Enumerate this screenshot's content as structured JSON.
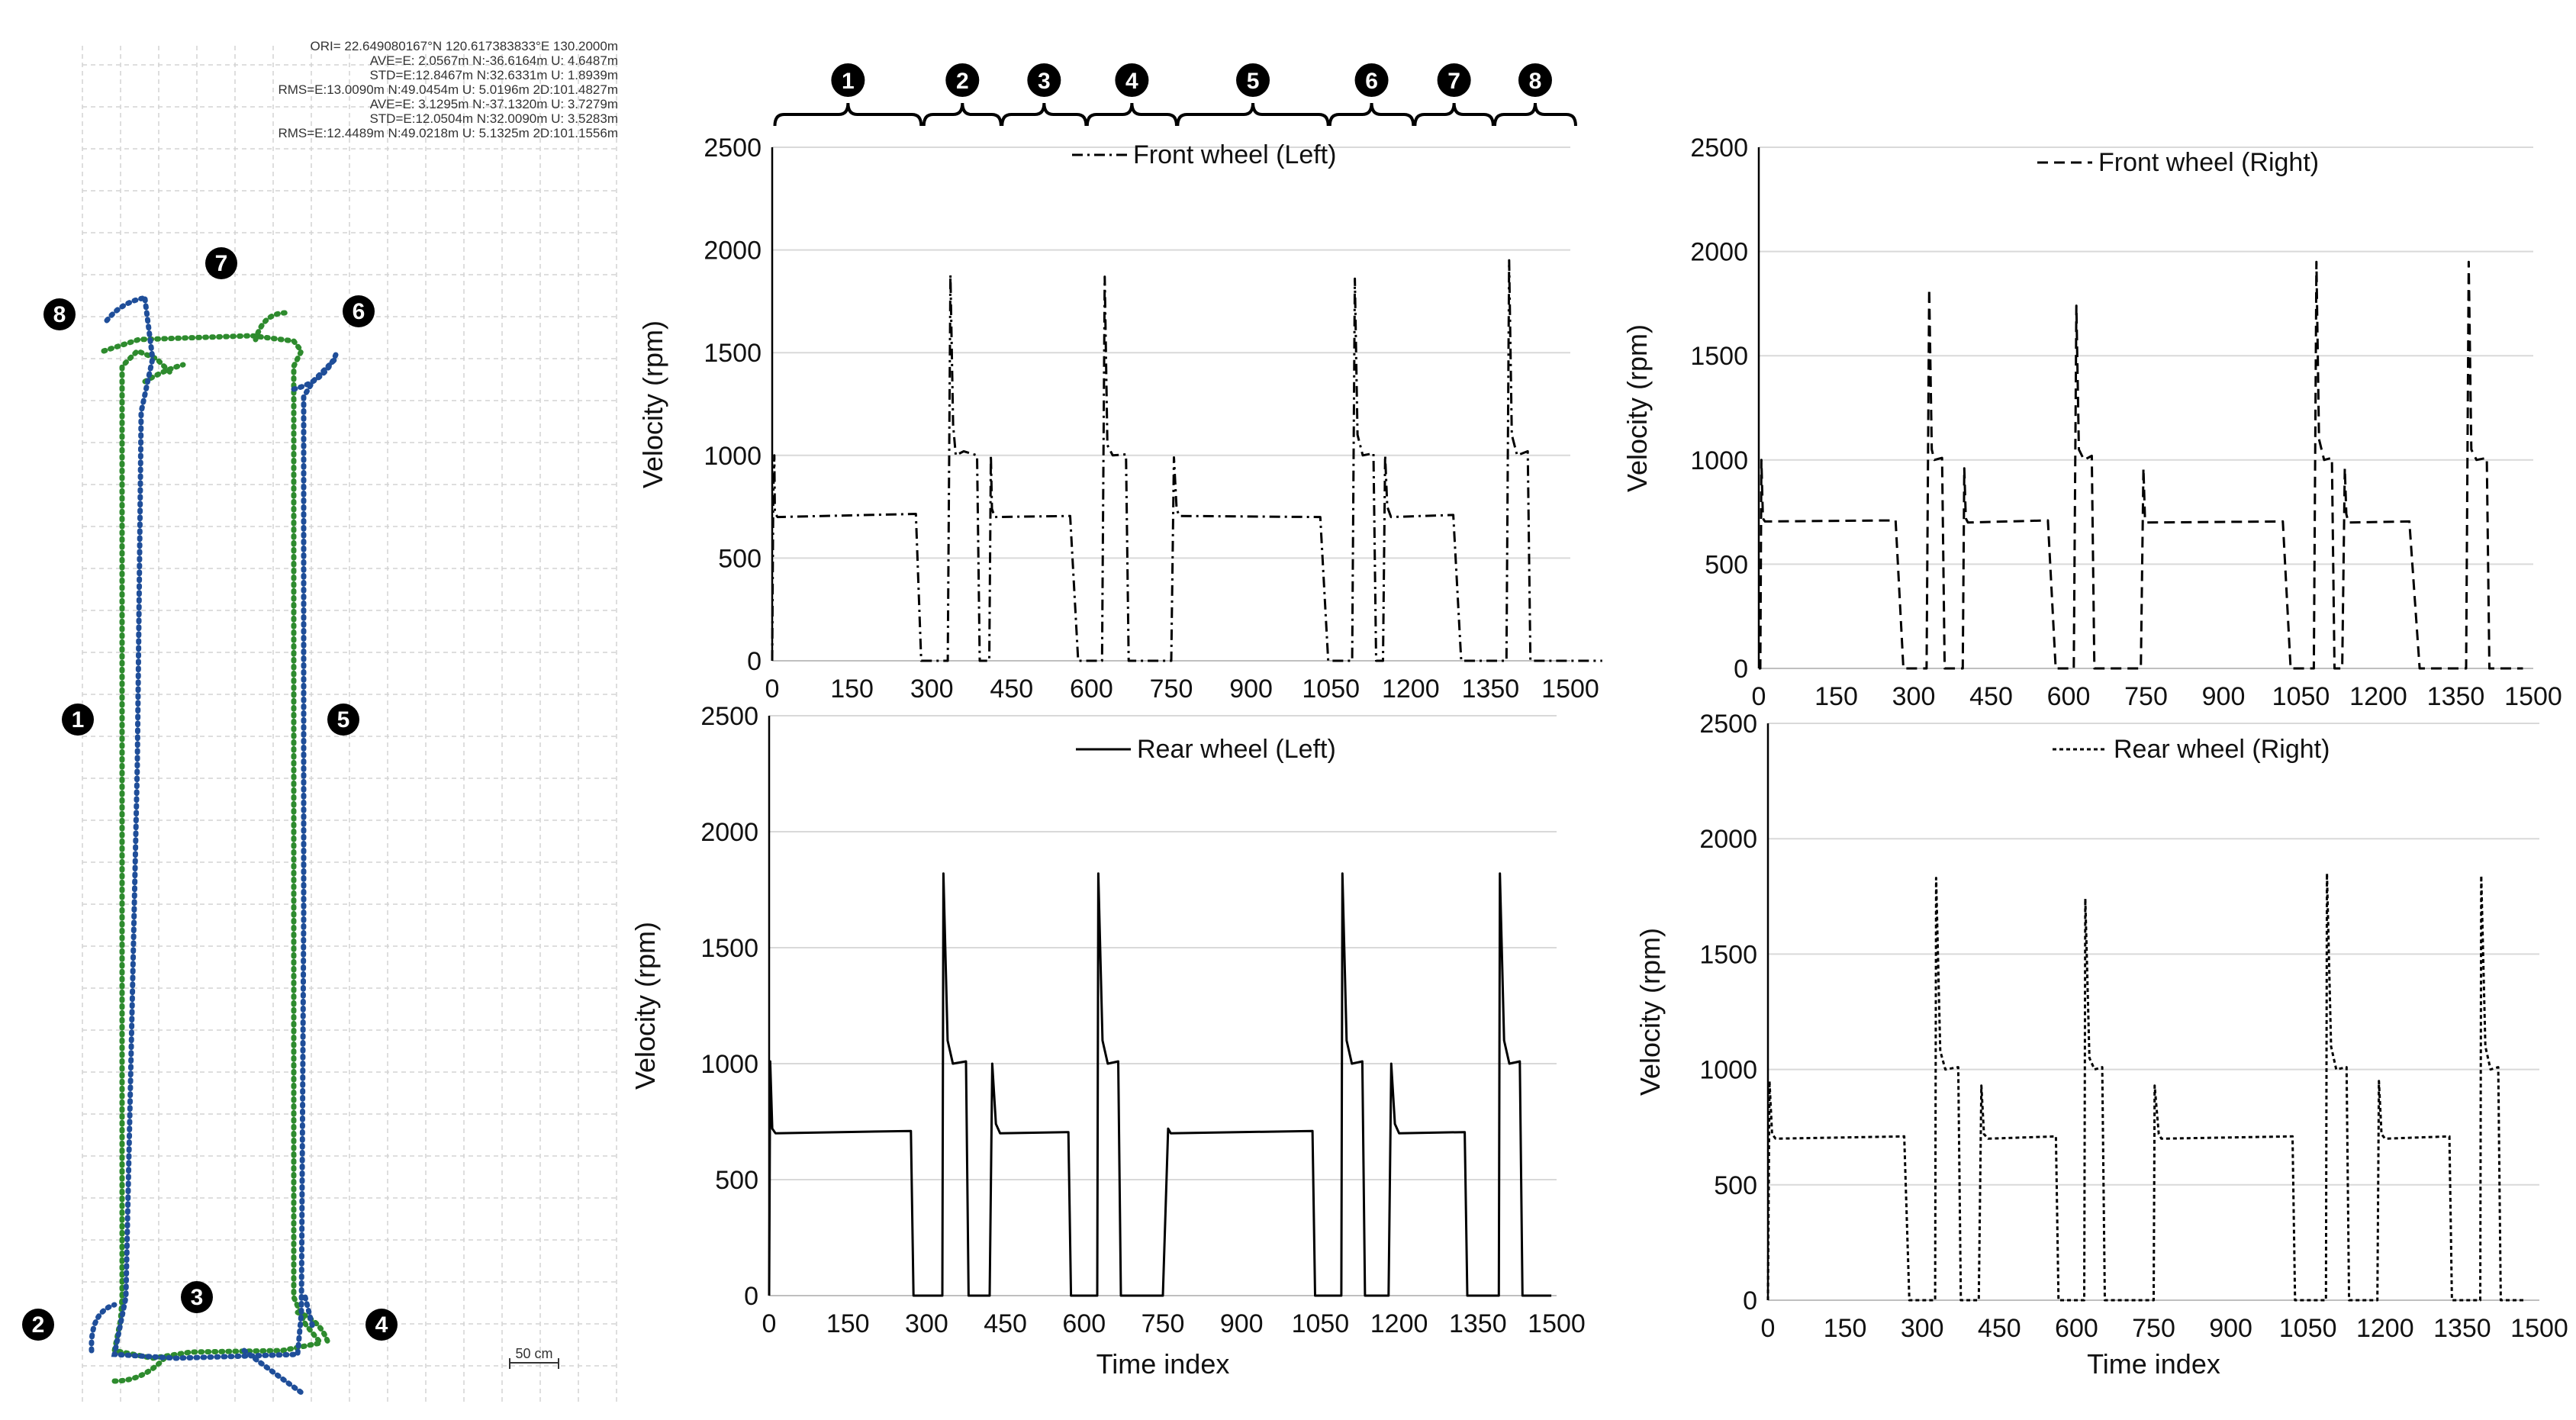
{
  "map_panel": {
    "stats": [
      "ORI= 22.649080167°N  120.617383833°E 130.2000m",
      "AVE=E: 2.0567m N:-36.6164m U: 4.6487m",
      "STD=E:12.8467m N:32.6331m U: 1.8939m",
      "RMS=E:13.0090m N:49.0454m U: 5.0196m 2D:101.4827m",
      "AVE=E: 3.1295m N:-37.1320m U: 3.7279m",
      "STD=E:12.0504m N:32.0090m U: 3.5283m",
      "RMS=E:12.4489m N:49.0218m U: 5.1325m 2D:101.1556m"
    ],
    "scale_label": "50 cm",
    "markers": [
      "1",
      "2",
      "3",
      "4",
      "5",
      "6",
      "7",
      "8"
    ],
    "colors": {
      "track_blue": "#1f4e99",
      "track_green": "#2e8b2e"
    }
  },
  "segment_labels": [
    "1",
    "2",
    "3",
    "4",
    "5",
    "6",
    "7",
    "8"
  ],
  "chart_data": [
    {
      "type": "line",
      "title": "",
      "legend": "Front wheel (Left)",
      "line_style": "dashdot",
      "xlabel": "",
      "ylabel": "Velocity (rpm)",
      "xlim": [
        0,
        1500
      ],
      "ylim": [
        0,
        2500
      ],
      "xticks": [
        "0",
        "150",
        "300",
        "450",
        "600",
        "750",
        "900",
        "1050",
        "1200",
        "1350",
        "1500"
      ],
      "yticks": [
        "0",
        "500",
        "1000",
        "1500",
        "2000",
        "2500"
      ],
      "series": [
        {
          "name": "Front wheel (Left)",
          "x": [
            0,
            2,
            4,
            5,
            10,
            270,
            280,
            330,
            335,
            340,
            345,
            360,
            385,
            390,
            408,
            411,
            413,
            418,
            560,
            575,
            620,
            625,
            630,
            640,
            665,
            670,
            682,
            750,
            755,
            760,
            765,
            1030,
            1045,
            1090,
            1095,
            1100,
            1110,
            1130,
            1135,
            1148,
            1152,
            1156,
            1163,
            1280,
            1295,
            1380,
            1385,
            1390,
            1400,
            1420,
            1425,
            1440,
            1560
          ],
          "y": [
            0,
            800,
            1000,
            720,
            700,
            715,
            0,
            0,
            1880,
            1150,
            1000,
            1020,
            1000,
            0,
            0,
            1000,
            740,
            700,
            705,
            0,
            0,
            1870,
            1050,
            1000,
            1005,
            0,
            0,
            0,
            990,
            740,
            705,
            700,
            0,
            0,
            1860,
            1100,
            1000,
            1010,
            0,
            0,
            1000,
            750,
            700,
            710,
            0,
            0,
            1950,
            1100,
            1000,
            1020,
            0,
            0,
            0
          ]
        }
      ]
    },
    {
      "type": "line",
      "title": "",
      "legend": "Front wheel (Right)",
      "line_style": "dashed",
      "xlabel": "",
      "ylabel": "Velocity (rpm)",
      "xlim": [
        0,
        1500
      ],
      "ylim": [
        0,
        2500
      ],
      "xticks": [
        "0",
        "150",
        "300",
        "450",
        "600",
        "750",
        "900",
        "1050",
        "1200",
        "1350",
        "1500"
      ],
      "yticks": [
        "0",
        "500",
        "1000",
        "1500",
        "2000",
        "2500"
      ],
      "series": [
        {
          "name": "Front wheel (Right)",
          "x": [
            0,
            3,
            5,
            8,
            12,
            265,
            280,
            325,
            330,
            335,
            340,
            355,
            360,
            380,
            395,
            398,
            401,
            405,
            560,
            575,
            610,
            615,
            620,
            630,
            645,
            650,
            655,
            740,
            745,
            748,
            752,
            1015,
            1030,
            1075,
            1080,
            1085,
            1095,
            1110,
            1115,
            1130,
            1135,
            1138,
            1142,
            1260,
            1280,
            1370,
            1375,
            1380,
            1390,
            1410,
            1415,
            1430,
            1480
          ],
          "y": [
            0,
            0,
            1000,
            720,
            705,
            710,
            0,
            0,
            1820,
            1050,
            1000,
            1010,
            0,
            0,
            0,
            960,
            720,
            700,
            710,
            0,
            0,
            1740,
            1050,
            1000,
            1020,
            0,
            0,
            0,
            960,
            720,
            700,
            705,
            0,
            0,
            1950,
            1100,
            1000,
            1010,
            0,
            0,
            960,
            740,
            700,
            705,
            0,
            0,
            1950,
            1050,
            1000,
            1010,
            0,
            0,
            0
          ]
        }
      ]
    },
    {
      "type": "line",
      "title": "",
      "legend": "Rear wheel (Left)",
      "line_style": "solid",
      "xlabel": "Time index",
      "ylabel": "Velocity (rpm)",
      "xlim": [
        0,
        1500
      ],
      "ylim": [
        0,
        2500
      ],
      "xticks": [
        "0",
        "150",
        "300",
        "450",
        "600",
        "750",
        "900",
        "1050",
        "1200",
        "1350",
        "1500"
      ],
      "yticks": [
        "0",
        "500",
        "1000",
        "1500",
        "2000",
        "2500"
      ],
      "series": [
        {
          "name": "Rear wheel (Left)",
          "x": [
            0,
            2,
            6,
            12,
            270,
            275,
            330,
            332,
            340,
            350,
            375,
            380,
            420,
            425,
            432,
            440,
            570,
            575,
            625,
            627,
            635,
            645,
            665,
            670,
            750,
            760,
            765,
            1035,
            1040,
            1090,
            1092,
            1100,
            1110,
            1130,
            1135,
            1180,
            1185,
            1192,
            1200,
            1325,
            1330,
            1390,
            1392,
            1400,
            1410,
            1430,
            1435,
            1490
          ],
          "y": [
            0,
            1010,
            720,
            700,
            710,
            0,
            0,
            1820,
            1100,
            1000,
            1010,
            0,
            0,
            1000,
            740,
            700,
            705,
            0,
            0,
            1820,
            1100,
            1000,
            1010,
            0,
            0,
            720,
            700,
            710,
            0,
            0,
            1820,
            1100,
            1000,
            1010,
            0,
            0,
            1000,
            740,
            700,
            705,
            0,
            0,
            1820,
            1100,
            1000,
            1010,
            0,
            0
          ]
        }
      ]
    },
    {
      "type": "line",
      "title": "",
      "legend": "Rear wheel (Right)",
      "line_style": "dotted",
      "xlabel": "Time index",
      "ylabel": "Velocity (rpm)",
      "xlim": [
        0,
        1500
      ],
      "ylim": [
        0,
        2500
      ],
      "xticks": [
        "0",
        "150",
        "300",
        "450",
        "600",
        "750",
        "900",
        "1050",
        "1200",
        "1350",
        "1500"
      ],
      "yticks": [
        "0",
        "500",
        "1000",
        "1500",
        "2000",
        "2500"
      ],
      "series": [
        {
          "name": "Rear wheel (Right)",
          "x": [
            0,
            3,
            8,
            15,
            265,
            275,
            325,
            327,
            335,
            345,
            370,
            375,
            410,
            415,
            420,
            428,
            560,
            565,
            615,
            617,
            625,
            635,
            650,
            655,
            750,
            752,
            760,
            765,
            1020,
            1025,
            1085,
            1087,
            1095,
            1105,
            1125,
            1130,
            1185,
            1188,
            1193,
            1200,
            1325,
            1330,
            1385,
            1387,
            1395,
            1405,
            1420,
            1425,
            1470
          ],
          "y": [
            0,
            950,
            720,
            700,
            710,
            0,
            0,
            1830,
            1080,
            1000,
            1010,
            0,
            0,
            930,
            720,
            700,
            710,
            0,
            0,
            1740,
            1050,
            1000,
            1010,
            0,
            0,
            930,
            720,
            700,
            710,
            0,
            0,
            1850,
            1100,
            1000,
            1010,
            0,
            0,
            950,
            720,
            700,
            710,
            0,
            0,
            1840,
            1100,
            1000,
            1010,
            0,
            0
          ]
        }
      ]
    }
  ]
}
